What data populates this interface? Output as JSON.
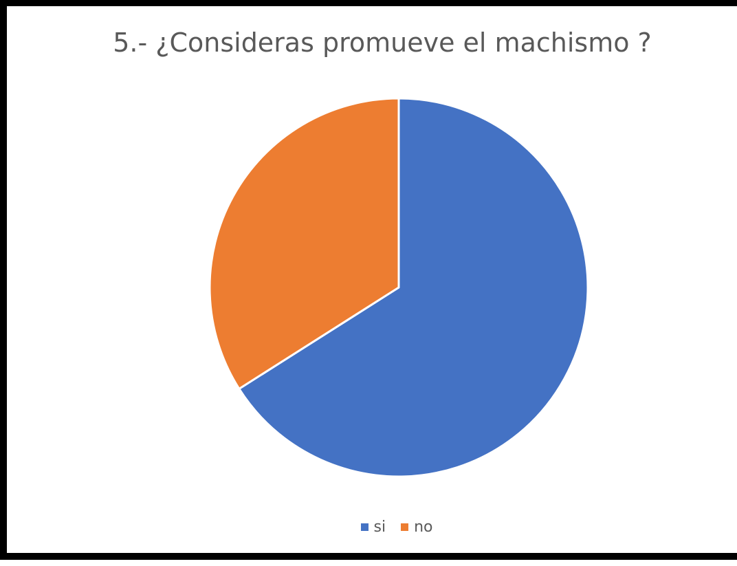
{
  "chart_data": {
    "type": "pie",
    "title": "5.-  ¿Consideras promueve el machismo ?",
    "categories": [
      "si",
      "no"
    ],
    "values": [
      66,
      34
    ],
    "colors": [
      "#4472C4",
      "#ED7D31"
    ],
    "start_angle": "12 o'clock",
    "direction": "clockwise",
    "legend_position": "bottom"
  }
}
